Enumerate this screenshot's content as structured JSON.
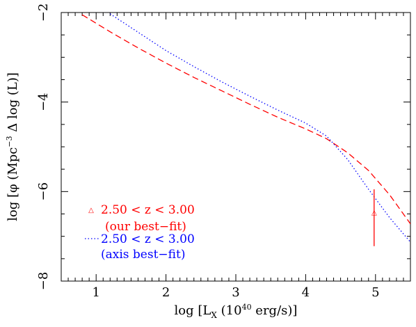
{
  "chart_data": {
    "type": "line",
    "xlabel": {
      "pre": "log [L",
      "sub": "X",
      "mid": " (10",
      "sup": "40",
      "post": " erg/s)]"
    },
    "ylabel": {
      "pre": "log [φ (Mpc",
      "sup": "−3",
      "post": " Δ log (L)]"
    },
    "xlim": [
      0.5,
      5.5
    ],
    "ylim": [
      -8,
      -2
    ],
    "x_ticks": [
      1,
      2,
      3,
      4,
      5
    ],
    "x_tick_labels": [
      "1",
      "2",
      "3",
      "4",
      "5"
    ],
    "y_ticks": [
      -8,
      -6,
      -4,
      -2
    ],
    "y_tick_labels": [
      "−8",
      "−6",
      "−4",
      "−2"
    ],
    "grid": false,
    "legend_position": "lower-left",
    "series": [
      {
        "name": "2.50 < z <  3.00",
        "name2": "(our best−fit)",
        "color": "#ff0000",
        "style": "dashed",
        "x": [
          0.8,
          1.2,
          1.6,
          2.0,
          2.4,
          2.8,
          3.2,
          3.6,
          4.0,
          4.3,
          4.6,
          4.9,
          5.2,
          5.5
        ],
        "y": [
          -2.05,
          -2.43,
          -2.79,
          -3.13,
          -3.45,
          -3.75,
          -4.05,
          -4.34,
          -4.6,
          -4.82,
          -5.13,
          -5.53,
          -6.07,
          -6.72
        ]
      },
      {
        "name": "2.50 < z <  3.00",
        "name2": "(axis best−fit)",
        "color": "#0000ff",
        "style": "dotted",
        "x": [
          1.2,
          1.6,
          2.0,
          2.4,
          2.8,
          3.2,
          3.6,
          4.0,
          4.3,
          4.6,
          4.9,
          5.2,
          5.5
        ],
        "y": [
          -2.03,
          -2.44,
          -2.85,
          -3.21,
          -3.55,
          -3.87,
          -4.18,
          -4.47,
          -4.76,
          -5.28,
          -5.95,
          -6.58,
          -7.13
        ]
      }
    ],
    "error_bar": {
      "x": 4.98,
      "y": -6.45,
      "y_low": -7.22,
      "y_high": -5.95,
      "color": "#ff0000",
      "marker": "triangle"
    }
  }
}
